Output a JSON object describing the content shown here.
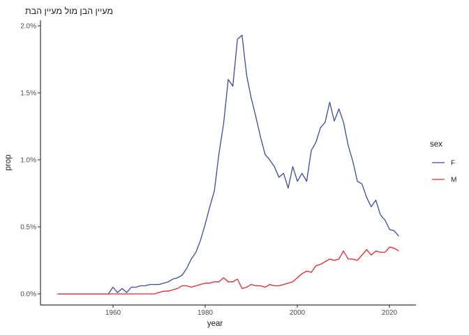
{
  "title": "מעיין הבן מול מעיין הבת",
  "axes": {
    "x": {
      "label": "year",
      "ticks": [
        "1960",
        "1980",
        "2000",
        "2020"
      ]
    },
    "y": {
      "label": "prop",
      "ticks": [
        "0.0%",
        "0.5%",
        "1.0%",
        "1.5%",
        "2.0%"
      ]
    }
  },
  "legend": {
    "title": "sex",
    "entries": [
      {
        "label": "F",
        "color": "#3B4A9D"
      },
      {
        "label": "M",
        "color": "#E8252A"
      }
    ]
  },
  "colors": {
    "series_f": "#3B4A9D",
    "series_m": "#E8252A",
    "axis_line": "#333333",
    "tick_text": "#4D4D4D",
    "title_text": "#1a1a1a",
    "background": "#ffffff"
  },
  "chart_data": {
    "type": "line",
    "title": "מעיין הבן מול מעיין הבת",
    "xlabel": "year",
    "ylabel": "prop",
    "grid": false,
    "legend_position": "right",
    "legend_title": "sex",
    "x_tick_values": [
      1960,
      1980,
      2000,
      2020
    ],
    "y_tick_values_pct": [
      0.0,
      0.5,
      1.0,
      1.5,
      2.0
    ],
    "xlim": [
      1944.3,
      2025.7
    ],
    "ylim": [
      -0.083,
      2.042
    ],
    "units": "percent",
    "x": [
      1948,
      1949,
      1950,
      1951,
      1952,
      1953,
      1954,
      1955,
      1956,
      1957,
      1958,
      1959,
      1960,
      1961,
      1962,
      1963,
      1964,
      1965,
      1966,
      1967,
      1968,
      1969,
      1970,
      1971,
      1972,
      1973,
      1974,
      1975,
      1976,
      1977,
      1978,
      1979,
      1980,
      1981,
      1982,
      1983,
      1984,
      1985,
      1986,
      1987,
      1988,
      1989,
      1990,
      1991,
      1992,
      1993,
      1994,
      1995,
      1996,
      1997,
      1998,
      1999,
      2000,
      2001,
      2002,
      2003,
      2004,
      2005,
      2006,
      2007,
      2008,
      2009,
      2010,
      2011,
      2012,
      2013,
      2014,
      2015,
      2016,
      2017,
      2018,
      2019,
      2020,
      2021,
      2022
    ],
    "series": [
      {
        "name": "F",
        "color": "#3B4A9D",
        "values": [
          0,
          0,
          0,
          0,
          0,
          0,
          0,
          0,
          0,
          0,
          0,
          0,
          0.05,
          0.01,
          0.04,
          0.01,
          0.05,
          0.05,
          0.06,
          0.06,
          0.07,
          0.07,
          0.07,
          0.08,
          0.09,
          0.11,
          0.12,
          0.14,
          0.19,
          0.26,
          0.31,
          0.4,
          0.52,
          0.65,
          0.77,
          1.05,
          1.27,
          1.6,
          1.55,
          1.9,
          1.93,
          1.63,
          1.46,
          1.32,
          1.17,
          1.04,
          1.0,
          0.95,
          0.87,
          0.9,
          0.79,
          0.95,
          0.84,
          0.9,
          0.84,
          1.07,
          1.13,
          1.24,
          1.28,
          1.43,
          1.29,
          1.38,
          1.28,
          1.11,
          0.99,
          0.84,
          0.82,
          0.72,
          0.65,
          0.7,
          0.59,
          0.55,
          0.48,
          0.47,
          0.43
        ]
      },
      {
        "name": "M",
        "color": "#E8252A",
        "values": [
          0,
          0,
          0,
          0,
          0,
          0,
          0,
          0,
          0,
          0,
          0,
          0,
          0,
          0,
          0,
          0,
          0,
          0,
          0,
          0,
          0,
          0,
          0.01,
          0.02,
          0.02,
          0.03,
          0.04,
          0.06,
          0.06,
          0.05,
          0.06,
          0.07,
          0.08,
          0.08,
          0.09,
          0.09,
          0.12,
          0.09,
          0.09,
          0.11,
          0.04,
          0.05,
          0.07,
          0.06,
          0.06,
          0.05,
          0.07,
          0.06,
          0.06,
          0.07,
          0.08,
          0.09,
          0.12,
          0.15,
          0.17,
          0.16,
          0.21,
          0.22,
          0.24,
          0.26,
          0.25,
          0.26,
          0.32,
          0.26,
          0.26,
          0.25,
          0.29,
          0.33,
          0.29,
          0.32,
          0.31,
          0.31,
          0.35,
          0.34,
          0.32
        ]
      }
    ]
  }
}
